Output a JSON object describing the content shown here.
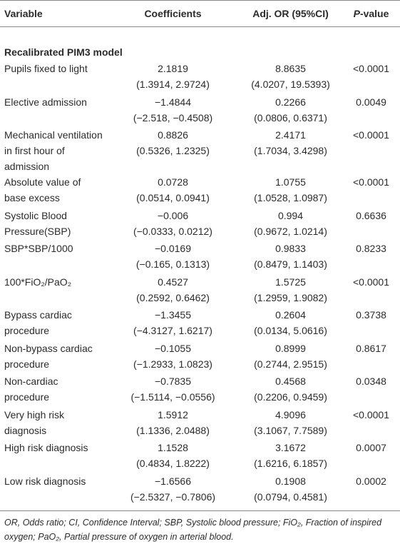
{
  "table": {
    "header": [
      "Variable",
      "Coefficients",
      "Adj. OR (95%CI)",
      "P-value"
    ],
    "section": "Recalibrated PIM3 model",
    "rows": [
      [
        "Pupils fixed to light",
        "2.1819",
        "(1.3914, 2.9724)",
        "8.8635",
        "(4.0207, 19.5393)",
        "<0.0001"
      ],
      [
        "Elective admission",
        "−1.4844",
        "(−2.518, −0.4508)",
        "0.2266",
        "(0.0806, 0.6371)",
        "0.0049"
      ],
      [
        "Mechanical ventilation in first hour of admission",
        "0.8826",
        "(0.5326, 1.2325)",
        "2.4171",
        "(1.7034, 3.4298)",
        "<0.0001"
      ],
      [
        "Absolute value of base excess",
        "0.0728",
        "(0.0514, 0.0941)",
        "1.0755",
        "(1.0528, 1.0987)",
        "<0.0001"
      ],
      [
        "Systolic Blood Pressure(SBP)",
        "−0.006",
        "(−0.0333, 0.0212)",
        "0.994",
        "(0.9672, 1.0214)",
        "0.6636"
      ],
      [
        "SBP*SBP/1000",
        "−0.0169",
        "(−0.165, 0.1313)",
        "0.9833",
        "(0.8479, 1.1403)",
        "0.8233"
      ],
      [
        "100*FiO₂/PaO₂",
        "0.4527",
        "(0.2592, 0.6462)",
        "1.5725",
        "(1.2959, 1.9082)",
        "<0.0001"
      ],
      [
        "Bypass cardiac procedure",
        "−1.3455",
        "(−4.3127, 1.6217)",
        "0.2604",
        "(0.0134, 5.0616)",
        "0.3738"
      ],
      [
        "Non-bypass cardiac procedure",
        "−0.1055",
        "(−1.2933, 1.0823)",
        "0.8999",
        "(0.2744, 2.9515)",
        "0.8617"
      ],
      [
        "Non-cardiac procedure",
        "−0.7835",
        "(−1.5114, −0.0556)",
        "0.4568",
        "(0.2206, 0.9459)",
        "0.0348"
      ],
      [
        "Very high risk diagnosis",
        "1.5912",
        "(1.1336, 2.0488)",
        "4.9096",
        "(3.1067, 7.7589)",
        "<0.0001"
      ],
      [
        "High risk diagnosis",
        "1.1528",
        "(0.4834, 1.8222)",
        "3.1672",
        "(1.6216, 6.1857)",
        "0.0007"
      ],
      [
        "Low risk diagnosis",
        "−1.6566",
        "(−2.5327, −0.7806)",
        "0.1908",
        "(0.0794, 0.4581)",
        "0.0002"
      ]
    ]
  },
  "footnote": "OR, Odds ratio; CI, Confidence Interval; SBP, Systolic blood pressure; FiO₂, Fraction of inspired oxygen; PaO₂, Partial pressure of oxygen in arterial blood."
}
